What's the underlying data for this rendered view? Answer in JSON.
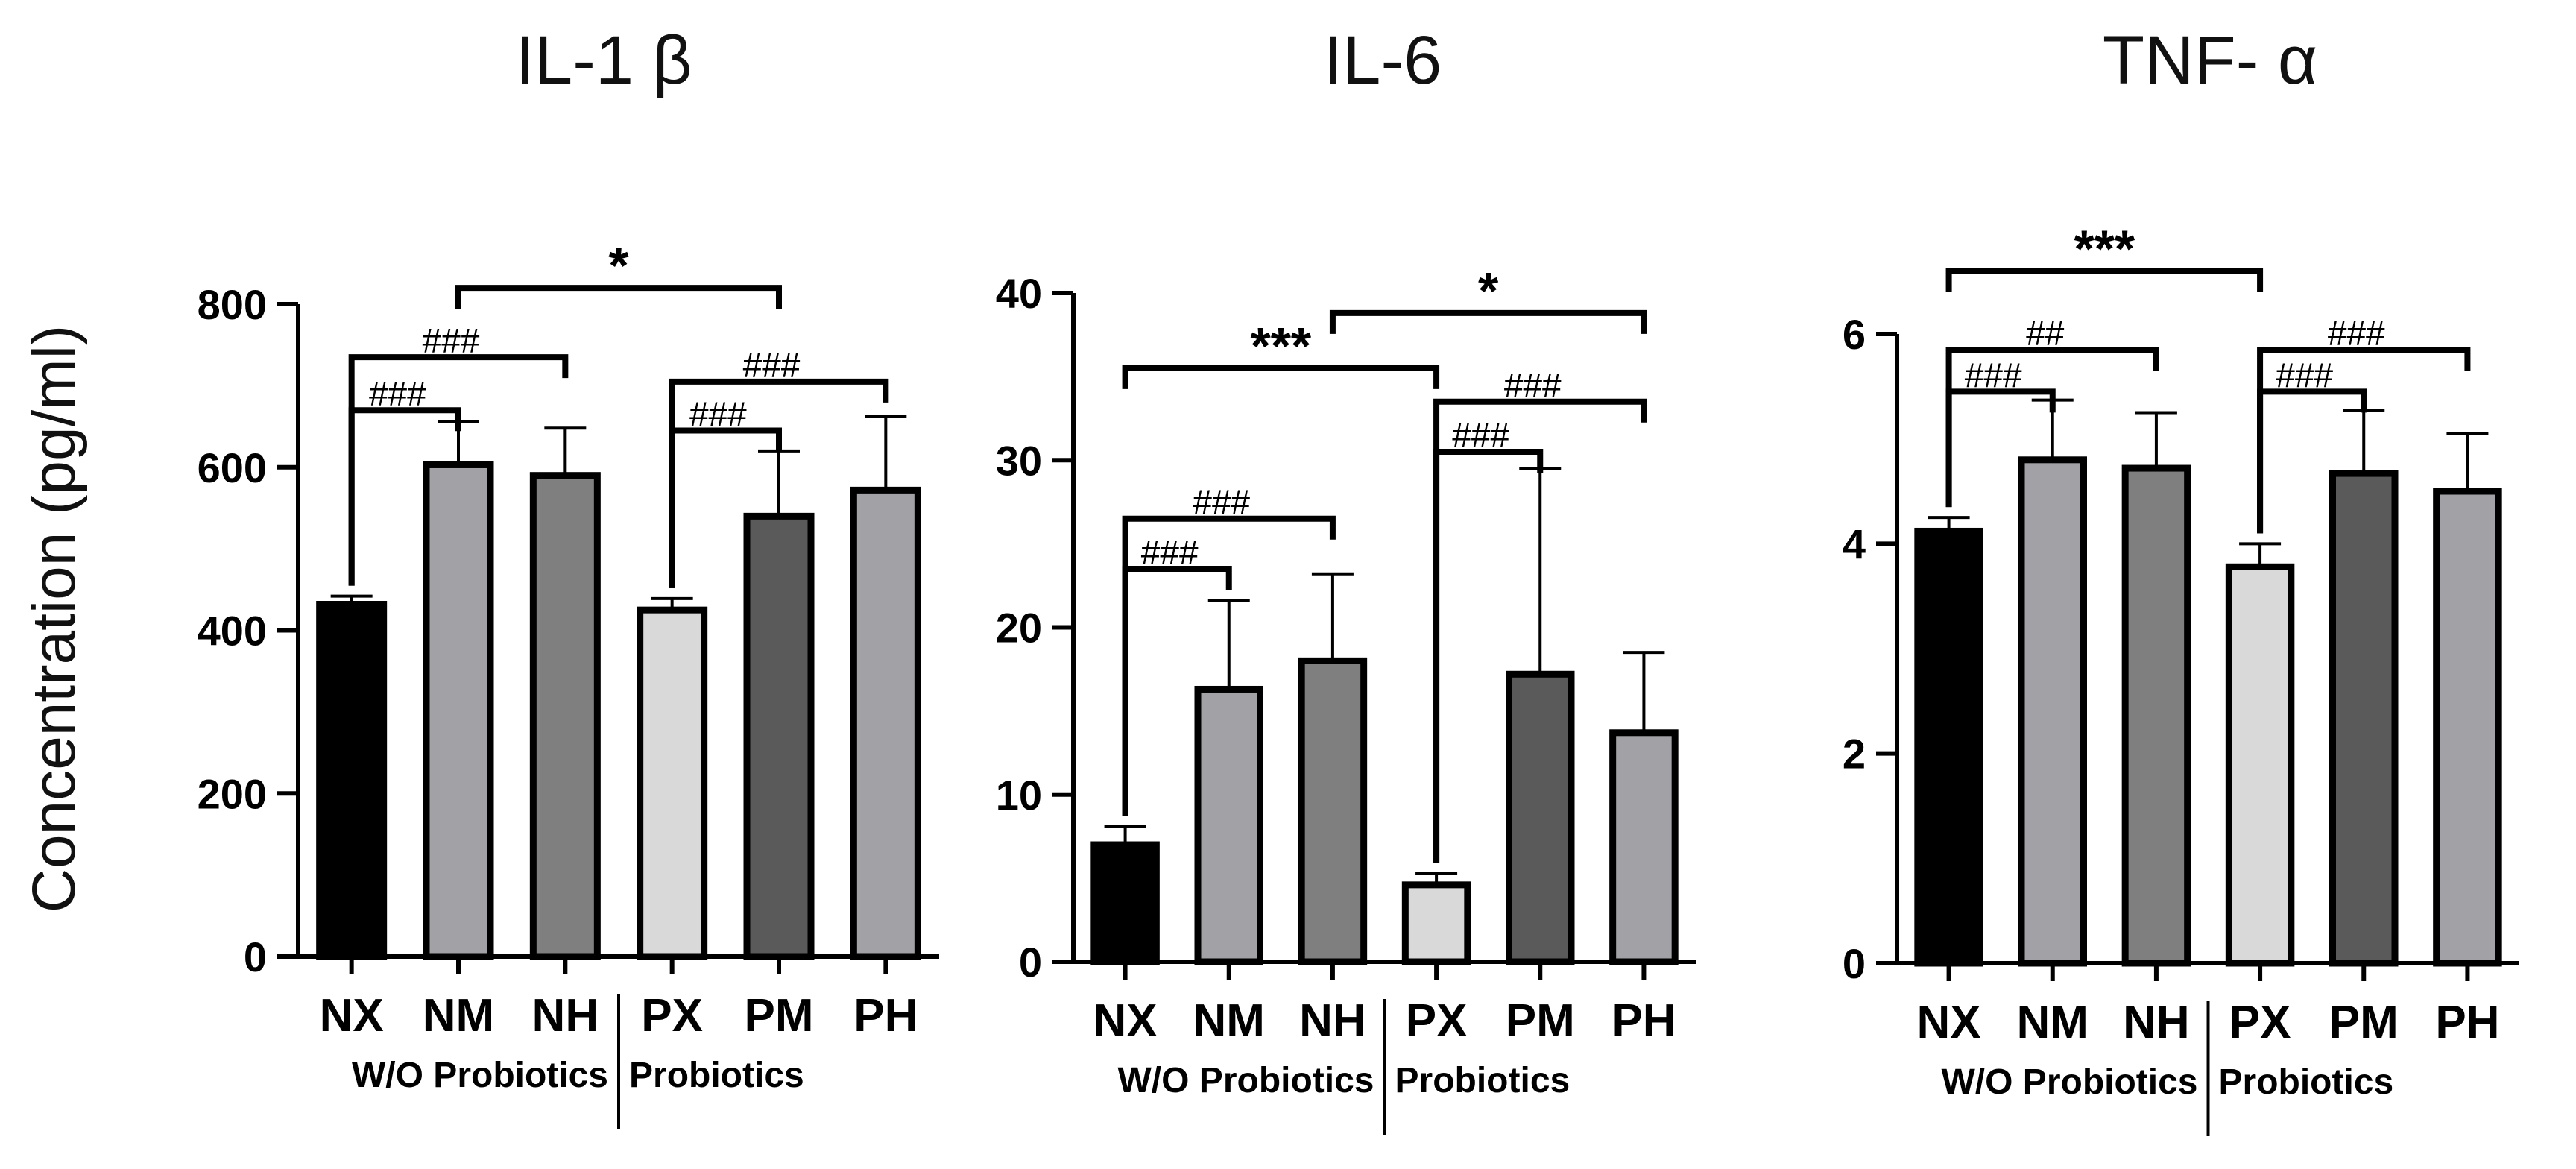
{
  "figure": {
    "ylabel": "Concentration (pg/ml)",
    "group_labels": [
      "W/O Probiotics",
      "Probiotics"
    ]
  },
  "chart_data": [
    {
      "type": "bar",
      "title": "IL-1 β",
      "ylabel": "Concentration (pg/ml)",
      "categories": [
        "NX",
        "NM",
        "NH",
        "PX",
        "PM",
        "PH"
      ],
      "values": [
        432,
        603,
        590,
        425,
        540,
        572
      ],
      "errors": [
        10,
        53,
        58,
        14,
        80,
        90
      ],
      "colors": [
        "#000000",
        "#a2a2a6",
        "#7f7f7f",
        "#d9d9d9",
        "#5a5a5a",
        "#a2a2a6"
      ],
      "ylim": [
        0,
        800
      ],
      "yticks": [
        0,
        200,
        400,
        600,
        800
      ],
      "groups": [
        {
          "label": "W/O Probiotics",
          "members": [
            "NX",
            "NM",
            "NH"
          ]
        },
        {
          "label": "Probiotics",
          "members": [
            "PX",
            "PM",
            "PH"
          ]
        }
      ],
      "annotations": [
        {
          "from": 1,
          "to": 4,
          "label": "*",
          "y": 820
        },
        {
          "from": 0,
          "to": 2,
          "label": "###",
          "y": 735
        },
        {
          "from": 0,
          "to": 1,
          "label": "###",
          "y": 670
        },
        {
          "from": 3,
          "to": 5,
          "label": "###",
          "y": 705
        },
        {
          "from": 3,
          "to": 4,
          "label": "###",
          "y": 645
        }
      ]
    },
    {
      "type": "bar",
      "title": "IL-6",
      "ylabel": "",
      "categories": [
        "NX",
        "NM",
        "NH",
        "PX",
        "PM",
        "PH"
      ],
      "values": [
        7.0,
        16.3,
        18.0,
        4.6,
        17.2,
        13.7
      ],
      "errors": [
        1.1,
        5.3,
        5.2,
        0.7,
        12.3,
        4.8
      ],
      "colors": [
        "#000000",
        "#a2a2a6",
        "#7f7f7f",
        "#d9d9d9",
        "#5a5a5a",
        "#a2a2a6"
      ],
      "ylim": [
        0,
        40
      ],
      "yticks": [
        0,
        10,
        20,
        30,
        40
      ],
      "groups": [
        {
          "label": "W/O Probiotics",
          "members": [
            "NX",
            "NM",
            "NH"
          ]
        },
        {
          "label": "Probiotics",
          "members": [
            "PX",
            "PM",
            "PH"
          ]
        }
      ],
      "annotations": [
        {
          "from": 0,
          "to": 3,
          "label": "***",
          "y": 35.5
        },
        {
          "from": 2,
          "to": 5,
          "label": "*",
          "y": 38.8
        },
        {
          "from": 0,
          "to": 2,
          "label": "###",
          "y": 26.5
        },
        {
          "from": 0,
          "to": 1,
          "label": "###",
          "y": 23.5
        },
        {
          "from": 3,
          "to": 5,
          "label": "###",
          "y": 33.5
        },
        {
          "from": 3,
          "to": 4,
          "label": "###",
          "y": 30.5
        }
      ]
    },
    {
      "type": "bar",
      "title": "TNF- α",
      "ylabel": "",
      "categories": [
        "NX",
        "NM",
        "NH",
        "PX",
        "PM",
        "PH"
      ],
      "values": [
        4.12,
        4.8,
        4.72,
        3.78,
        4.67,
        4.5
      ],
      "errors": [
        0.13,
        0.57,
        0.53,
        0.22,
        0.6,
        0.55
      ],
      "colors": [
        "#000000",
        "#a2a2a6",
        "#7f7f7f",
        "#d9d9d9",
        "#5a5a5a",
        "#a2a2a6"
      ],
      "ylim": [
        0,
        6
      ],
      "yticks": [
        0,
        2,
        4,
        6
      ],
      "groups": [
        {
          "label": "W/O Probiotics",
          "members": [
            "NX",
            "NM",
            "NH"
          ]
        },
        {
          "label": "Probiotics",
          "members": [
            "PX",
            "PM",
            "PH"
          ]
        }
      ],
      "annotations": [
        {
          "from": 0,
          "to": 3,
          "label": "***",
          "y": 6.6
        },
        {
          "from": 0,
          "to": 2,
          "label": "##",
          "y": 5.85
        },
        {
          "from": 0,
          "to": 1,
          "label": "###",
          "y": 5.45
        },
        {
          "from": 3,
          "to": 5,
          "label": "###",
          "y": 5.85
        },
        {
          "from": 3,
          "to": 4,
          "label": "###",
          "y": 5.45
        }
      ]
    }
  ]
}
